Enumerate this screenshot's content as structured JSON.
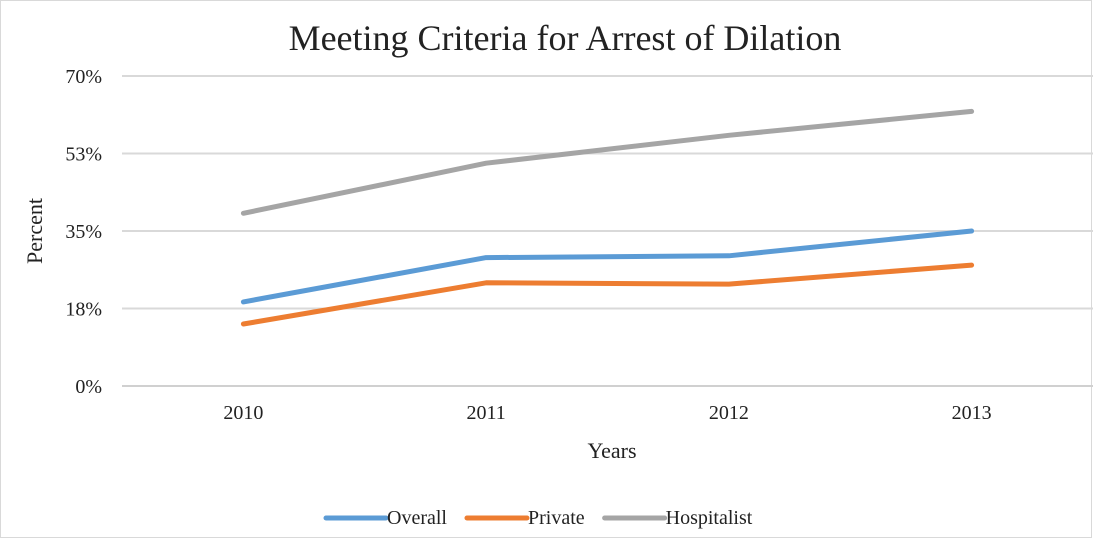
{
  "chart_data": {
    "type": "line",
    "title": "Meeting Criteria for Arrest of Dilation",
    "xlabel": "Years",
    "ylabel": "Percent",
    "categories": [
      "2010",
      "2011",
      "2012",
      "2013"
    ],
    "y_ticks": [
      "0%",
      "18%",
      "35%",
      "53%",
      "70%"
    ],
    "ylim": [
      0,
      70
    ],
    "grid": true,
    "legend_position": "bottom",
    "series": [
      {
        "name": "Overall",
        "color": "#5B9BD5",
        "values": [
          19,
          29,
          29.4,
          35
        ]
      },
      {
        "name": "Private",
        "color": "#ED7D31",
        "values": [
          14,
          23.3,
          23,
          27.3
        ]
      },
      {
        "name": "Hospitalist",
        "color": "#A5A5A5",
        "values": [
          39,
          50.3,
          56.6,
          62
        ]
      }
    ]
  }
}
